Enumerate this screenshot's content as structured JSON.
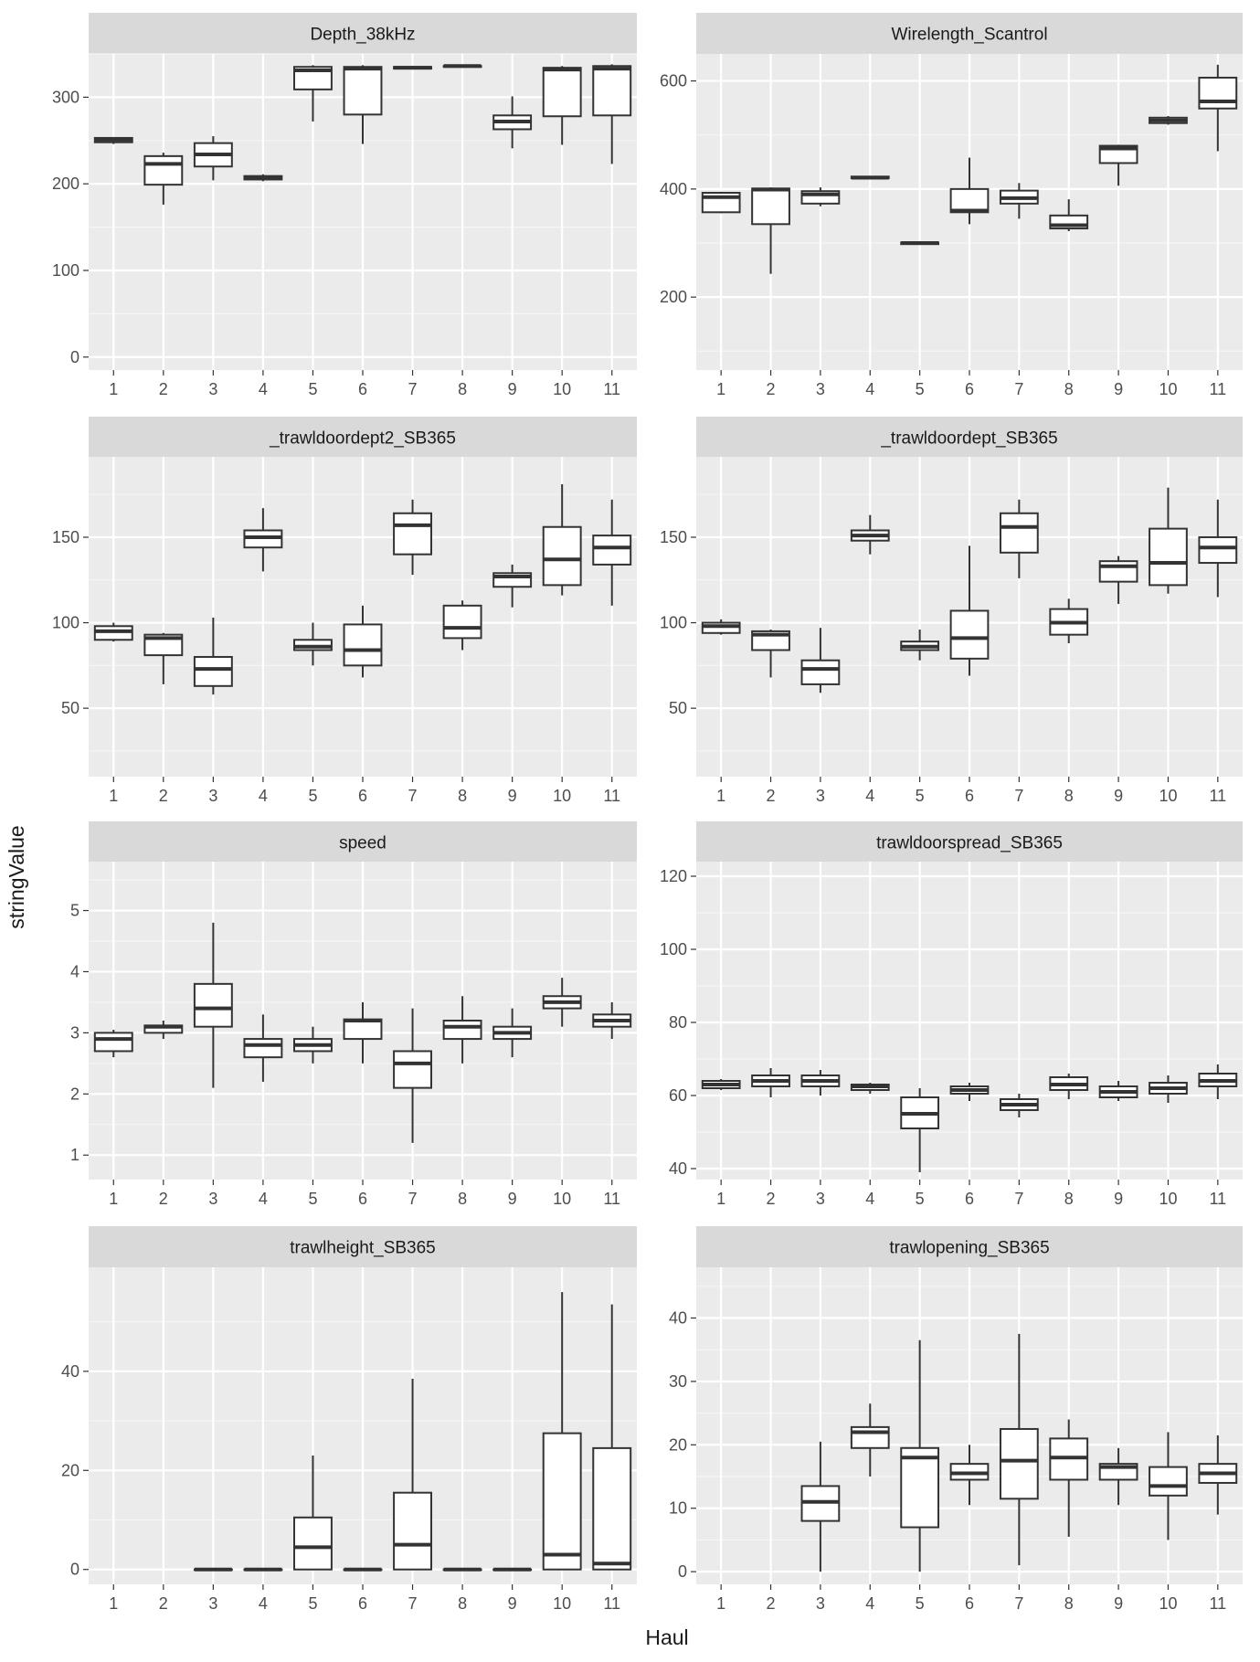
{
  "xlabel": "Haul",
  "ylabel": "stringValue",
  "categories": [
    "1",
    "2",
    "3",
    "4",
    "5",
    "6",
    "7",
    "8",
    "9",
    "10",
    "11"
  ],
  "chart_data": [
    {
      "type": "boxplot",
      "title": "Depth_38kHz",
      "ylim": [
        -15,
        350
      ],
      "yticks": [
        0,
        100,
        200,
        300
      ],
      "boxes": [
        {
          "x": "1",
          "lw": 246,
          "q1": 248,
          "med": 251,
          "q3": 253,
          "uw": 254
        },
        {
          "x": "2",
          "lw": 176,
          "q1": 199,
          "med": 223,
          "q3": 232,
          "uw": 236
        },
        {
          "x": "3",
          "lw": 204,
          "q1": 220,
          "med": 234,
          "q3": 247,
          "uw": 255
        },
        {
          "x": "4",
          "lw": 203,
          "q1": 205,
          "med": 207,
          "q3": 209,
          "uw": 211
        },
        {
          "x": "5",
          "lw": 272,
          "q1": 309,
          "med": 331,
          "q3": 335,
          "uw": 337
        },
        {
          "x": "6",
          "lw": 246,
          "q1": 280,
          "med": 333,
          "q3": 335,
          "uw": 337
        },
        {
          "x": "7",
          "lw": 332,
          "q1": 333,
          "med": 334,
          "q3": 335,
          "uw": 336
        },
        {
          "x": "8",
          "lw": 334,
          "q1": 335,
          "med": 336,
          "q3": 336,
          "uw": 337
        },
        {
          "x": "9",
          "lw": 241,
          "q1": 263,
          "med": 272,
          "q3": 279,
          "uw": 301
        },
        {
          "x": "10",
          "lw": 245,
          "q1": 278,
          "med": 332,
          "q3": 334,
          "uw": 336
        },
        {
          "x": "11",
          "lw": 223,
          "q1": 279,
          "med": 333,
          "q3": 336,
          "uw": 338
        }
      ]
    },
    {
      "type": "boxplot",
      "title": "Wirelength_Scantrol",
      "ylim": [
        65,
        650
      ],
      "yticks": [
        200,
        400,
        600
      ],
      "boxes": [
        {
          "x": "1",
          "lw": 355,
          "q1": 357,
          "med": 385,
          "q3": 393,
          "uw": 395
        },
        {
          "x": "2",
          "lw": 243,
          "q1": 335,
          "med": 399,
          "q3": 401,
          "uw": 403
        },
        {
          "x": "3",
          "lw": 368,
          "q1": 373,
          "med": 390,
          "q3": 396,
          "uw": 403
        },
        {
          "x": "4",
          "lw": 419,
          "q1": 420,
          "med": 421,
          "q3": 423,
          "uw": 424
        },
        {
          "x": "5",
          "lw": 298,
          "q1": 298,
          "med": 300,
          "q3": 301,
          "uw": 302
        },
        {
          "x": "6",
          "lw": 335,
          "q1": 357,
          "med": 360,
          "q3": 400,
          "uw": 458
        },
        {
          "x": "7",
          "lw": 345,
          "q1": 373,
          "med": 383,
          "q3": 397,
          "uw": 411
        },
        {
          "x": "8",
          "lw": 322,
          "q1": 327,
          "med": 333,
          "q3": 351,
          "uw": 381
        },
        {
          "x": "9",
          "lw": 406,
          "q1": 448,
          "med": 475,
          "q3": 480,
          "uw": 482
        },
        {
          "x": "10",
          "lw": 519,
          "q1": 522,
          "med": 527,
          "q3": 532,
          "uw": 535
        },
        {
          "x": "11",
          "lw": 470,
          "q1": 549,
          "med": 562,
          "q3": 606,
          "uw": 630
        }
      ]
    },
    {
      "type": "boxplot",
      "title": "_trawldoordept2_SB365",
      "ylim": [
        10,
        197
      ],
      "yticks": [
        50,
        100,
        150
      ],
      "boxes": [
        {
          "x": "1",
          "lw": 89,
          "q1": 90,
          "med": 95,
          "q3": 98,
          "uw": 100
        },
        {
          "x": "2",
          "lw": 64,
          "q1": 81,
          "med": 91,
          "q3": 93,
          "uw": 94
        },
        {
          "x": "3",
          "lw": 58,
          "q1": 63,
          "med": 73,
          "q3": 80,
          "uw": 103
        },
        {
          "x": "4",
          "lw": 130,
          "q1": 144,
          "med": 150,
          "q3": 154,
          "uw": 167
        },
        {
          "x": "5",
          "lw": 75,
          "q1": 84,
          "med": 86,
          "q3": 90,
          "uw": 100
        },
        {
          "x": "6",
          "lw": 68,
          "q1": 75,
          "med": 84,
          "q3": 99,
          "uw": 110
        },
        {
          "x": "7",
          "lw": 128,
          "q1": 140,
          "med": 157,
          "q3": 164,
          "uw": 172
        },
        {
          "x": "8",
          "lw": 84,
          "q1": 91,
          "med": 97,
          "q3": 110,
          "uw": 113
        },
        {
          "x": "9",
          "lw": 109,
          "q1": 121,
          "med": 127,
          "q3": 129,
          "uw": 134
        },
        {
          "x": "10",
          "lw": 116,
          "q1": 122,
          "med": 137,
          "q3": 156,
          "uw": 181
        },
        {
          "x": "11",
          "lw": 110,
          "q1": 134,
          "med": 144,
          "q3": 151,
          "uw": 172
        }
      ]
    },
    {
      "type": "boxplot",
      "title": "_trawldoordept_SB365",
      "ylim": [
        10,
        197
      ],
      "yticks": [
        50,
        100,
        150
      ],
      "boxes": [
        {
          "x": "1",
          "lw": 93,
          "q1": 94,
          "med": 98,
          "q3": 100,
          "uw": 102
        },
        {
          "x": "2",
          "lw": 68,
          "q1": 84,
          "med": 93,
          "q3": 95,
          "uw": 96
        },
        {
          "x": "3",
          "lw": 59,
          "q1": 64,
          "med": 73,
          "q3": 78,
          "uw": 97
        },
        {
          "x": "4",
          "lw": 140,
          "q1": 148,
          "med": 151,
          "q3": 154,
          "uw": 163
        },
        {
          "x": "5",
          "lw": 78,
          "q1": 84,
          "med": 86,
          "q3": 89,
          "uw": 96
        },
        {
          "x": "6",
          "lw": 69,
          "q1": 79,
          "med": 91,
          "q3": 107,
          "uw": 145
        },
        {
          "x": "7",
          "lw": 126,
          "q1": 141,
          "med": 156,
          "q3": 164,
          "uw": 172
        },
        {
          "x": "8",
          "lw": 88,
          "q1": 93,
          "med": 100,
          "q3": 108,
          "uw": 114
        },
        {
          "x": "9",
          "lw": 111,
          "q1": 124,
          "med": 133,
          "q3": 136,
          "uw": 139
        },
        {
          "x": "10",
          "lw": 117,
          "q1": 122,
          "med": 135,
          "q3": 155,
          "uw": 179
        },
        {
          "x": "11",
          "lw": 115,
          "q1": 135,
          "med": 144,
          "q3": 150,
          "uw": 172
        }
      ]
    },
    {
      "type": "boxplot",
      "title": "speed",
      "ylim": [
        0.6,
        5.8
      ],
      "yticks": [
        1,
        2,
        3,
        4,
        5
      ],
      "boxes": [
        {
          "x": "1",
          "lw": 2.6,
          "q1": 2.7,
          "med": 2.9,
          "q3": 3.0,
          "uw": 3.05
        },
        {
          "x": "2",
          "lw": 2.9,
          "q1": 3.0,
          "med": 3.1,
          "q3": 3.12,
          "uw": 3.2
        },
        {
          "x": "3",
          "lw": 2.1,
          "q1": 3.1,
          "med": 3.4,
          "q3": 3.8,
          "uw": 4.8
        },
        {
          "x": "4",
          "lw": 2.2,
          "q1": 2.6,
          "med": 2.8,
          "q3": 2.9,
          "uw": 3.3
        },
        {
          "x": "5",
          "lw": 2.5,
          "q1": 2.7,
          "med": 2.8,
          "q3": 2.9,
          "uw": 3.1
        },
        {
          "x": "6",
          "lw": 2.5,
          "q1": 2.9,
          "med": 3.2,
          "q3": 3.22,
          "uw": 3.5
        },
        {
          "x": "7",
          "lw": 1.2,
          "q1": 2.1,
          "med": 2.5,
          "q3": 2.7,
          "uw": 3.4
        },
        {
          "x": "8",
          "lw": 2.5,
          "q1": 2.9,
          "med": 3.1,
          "q3": 3.2,
          "uw": 3.6
        },
        {
          "x": "9",
          "lw": 2.6,
          "q1": 2.9,
          "med": 3.0,
          "q3": 3.1,
          "uw": 3.4
        },
        {
          "x": "10",
          "lw": 3.1,
          "q1": 3.4,
          "med": 3.5,
          "q3": 3.6,
          "uw": 3.9
        },
        {
          "x": "11",
          "lw": 2.9,
          "q1": 3.1,
          "med": 3.2,
          "q3": 3.3,
          "uw": 3.5
        }
      ]
    },
    {
      "type": "boxplot",
      "title": "trawldoorspread_SB365",
      "ylim": [
        37,
        124
      ],
      "yticks": [
        40,
        60,
        80,
        100,
        120
      ],
      "boxes": [
        {
          "x": "1",
          "lw": 61.5,
          "q1": 62,
          "med": 63,
          "q3": 64,
          "uw": 64.5
        },
        {
          "x": "2",
          "lw": 59.5,
          "q1": 62.5,
          "med": 64,
          "q3": 65.5,
          "uw": 67.5
        },
        {
          "x": "3",
          "lw": 60,
          "q1": 62.5,
          "med": 64,
          "q3": 65.5,
          "uw": 67
        },
        {
          "x": "4",
          "lw": 60.5,
          "q1": 61.5,
          "med": 62.5,
          "q3": 63,
          "uw": 63.5
        },
        {
          "x": "5",
          "lw": 39,
          "q1": 51,
          "med": 55,
          "q3": 59.5,
          "uw": 62
        },
        {
          "x": "6",
          "lw": 58.5,
          "q1": 60.5,
          "med": 61.5,
          "q3": 62.5,
          "uw": 63.5
        },
        {
          "x": "7",
          "lw": 54,
          "q1": 56,
          "med": 57.5,
          "q3": 59,
          "uw": 60.5
        },
        {
          "x": "8",
          "lw": 59,
          "q1": 61.5,
          "med": 63,
          "q3": 65,
          "uw": 66
        },
        {
          "x": "9",
          "lw": 58.5,
          "q1": 59.5,
          "med": 61,
          "q3": 62.5,
          "uw": 64
        },
        {
          "x": "10",
          "lw": 58,
          "q1": 60.5,
          "med": 62,
          "q3": 63.5,
          "uw": 65.5
        },
        {
          "x": "11",
          "lw": 59,
          "q1": 62.5,
          "med": 64,
          "q3": 66,
          "uw": 68.5
        }
      ]
    },
    {
      "type": "boxplot",
      "title": "trawlheight_SB365",
      "ylim": [
        -3,
        61
      ],
      "yticks": [
        0,
        20,
        40
      ],
      "boxes": [
        {
          "x": "3",
          "lw": 0,
          "q1": 0,
          "med": 0,
          "q3": 0,
          "uw": 0
        },
        {
          "x": "4",
          "lw": 0,
          "q1": 0,
          "med": 0,
          "q3": 0,
          "uw": 0
        },
        {
          "x": "5",
          "lw": 0,
          "q1": 0,
          "med": 4.5,
          "q3": 10.5,
          "uw": 23
        },
        {
          "x": "6",
          "lw": 0,
          "q1": 0,
          "med": 0,
          "q3": 0,
          "uw": 0
        },
        {
          "x": "7",
          "lw": 0,
          "q1": 0,
          "med": 5,
          "q3": 15.5,
          "uw": 38.5
        },
        {
          "x": "8",
          "lw": 0,
          "q1": 0,
          "med": 0,
          "q3": 0,
          "uw": 0
        },
        {
          "x": "9",
          "lw": 0,
          "q1": 0,
          "med": 0,
          "q3": 0,
          "uw": 0
        },
        {
          "x": "10",
          "lw": 0,
          "q1": 0,
          "med": 3,
          "q3": 27.5,
          "uw": 56
        },
        {
          "x": "11",
          "lw": 0,
          "q1": 0,
          "med": 1.2,
          "q3": 24.5,
          "uw": 53.5
        }
      ]
    },
    {
      "type": "boxplot",
      "title": "trawlopening_SB365",
      "ylim": [
        -2,
        48
      ],
      "yticks": [
        0,
        10,
        20,
        30,
        40
      ],
      "boxes": [
        {
          "x": "3",
          "lw": 0,
          "q1": 8,
          "med": 11,
          "q3": 13.5,
          "uw": 20.5
        },
        {
          "x": "4",
          "lw": 15,
          "q1": 19.5,
          "med": 22,
          "q3": 22.8,
          "uw": 26.5
        },
        {
          "x": "5",
          "lw": 0,
          "q1": 7,
          "med": 18,
          "q3": 19.5,
          "uw": 36.5
        },
        {
          "x": "6",
          "lw": 10.5,
          "q1": 14.5,
          "med": 15.5,
          "q3": 17,
          "uw": 20
        },
        {
          "x": "7",
          "lw": 1,
          "q1": 11.5,
          "med": 17.5,
          "q3": 22.5,
          "uw": 37.5
        },
        {
          "x": "8",
          "lw": 5.5,
          "q1": 14.5,
          "med": 18,
          "q3": 21,
          "uw": 24
        },
        {
          "x": "9",
          "lw": 10.5,
          "q1": 14.5,
          "med": 16.5,
          "q3": 17,
          "uw": 19.5
        },
        {
          "x": "10",
          "lw": 5,
          "q1": 12,
          "med": 13.5,
          "q3": 16.5,
          "uw": 22
        },
        {
          "x": "11",
          "lw": 9,
          "q1": 14,
          "med": 15.5,
          "q3": 17,
          "uw": 21.5
        }
      ]
    }
  ]
}
